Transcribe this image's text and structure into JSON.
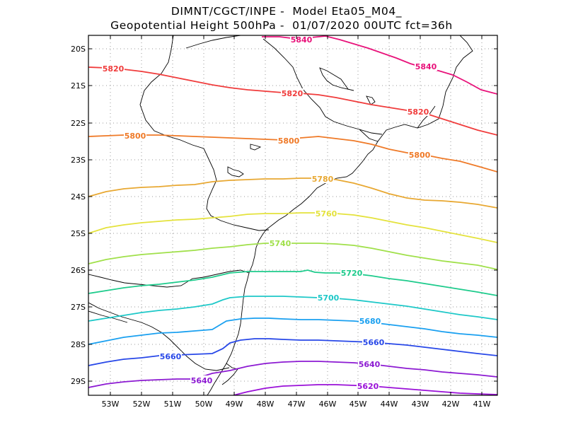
{
  "title": {
    "line1": "DIMNT/CGCT/INPE -  Model Eta05_M04_",
    "line2": "Geopotential Height 500hPa -  01/07/2020 00UTC fct=36h"
  },
  "axes": {
    "lon_labels": [
      "53W",
      "52W",
      "51W",
      "50W",
      "49W",
      "48W",
      "47W",
      "46W",
      "45W",
      "44W",
      "43W",
      "42W",
      "41W"
    ],
    "lat_labels": [
      "20S",
      "21S",
      "22S",
      "23S",
      "24S",
      "25S",
      "26S",
      "27S",
      "28S",
      "29S"
    ]
  },
  "contours": [
    {
      "value": "5840",
      "color": "#e8127a",
      "labels": [
        "5840",
        "5840"
      ]
    },
    {
      "value": "5820",
      "color": "#f03c3c",
      "labels": [
        "5820",
        "5820",
        "5820"
      ]
    },
    {
      "value": "5800",
      "color": "#ef7a28",
      "labels": [
        "5800",
        "5800",
        "5800"
      ]
    },
    {
      "value": "5780",
      "color": "#e8a832",
      "labels": [
        "5780"
      ]
    },
    {
      "value": "5760",
      "color": "#e4e23c",
      "labels": [
        "5760"
      ]
    },
    {
      "value": "5740",
      "color": "#a0e04a",
      "labels": [
        "5740"
      ]
    },
    {
      "value": "5720",
      "color": "#1ecb8c",
      "labels": [
        "5720"
      ]
    },
    {
      "value": "5700",
      "color": "#1ec8c8",
      "labels": [
        "5700"
      ]
    },
    {
      "value": "5680",
      "color": "#1aa0f0",
      "labels": [
        "5680"
      ]
    },
    {
      "value": "5660",
      "color": "#2848e8",
      "labels": [
        "5660",
        "5660"
      ]
    },
    {
      "value": "5640",
      "color": "#8c1ad2",
      "labels": [
        "5640",
        "5640"
      ]
    },
    {
      "value": "5620",
      "color": "#9a10d8",
      "labels": [
        "5620"
      ]
    }
  ]
}
